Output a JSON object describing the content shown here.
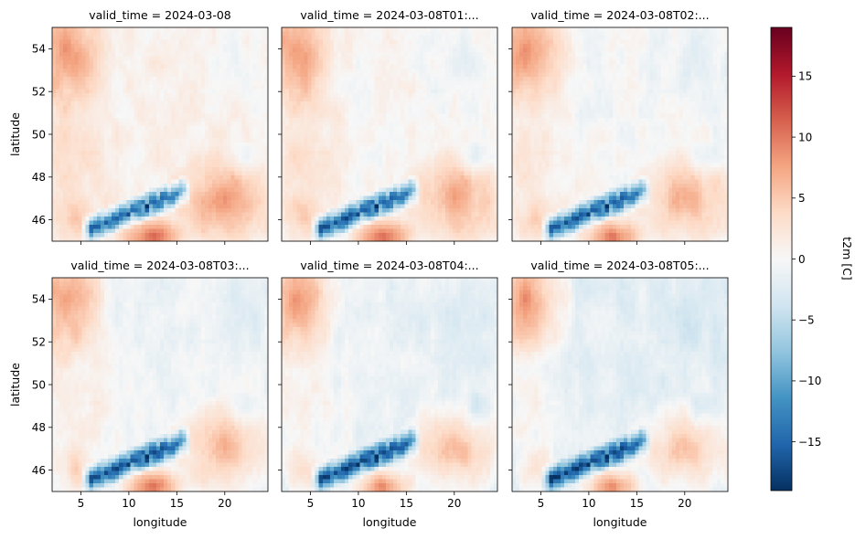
{
  "chart_data": {
    "type": "heatmap",
    "facet_titles": [
      "valid_time = 2024-03-08",
      "valid_time = 2024-03-08T01:...",
      "valid_time = 2024-03-08T02:...",
      "valid_time = 2024-03-08T03:...",
      "valid_time = 2024-03-08T04:...",
      "valid_time = 2024-03-08T05:..."
    ],
    "facet_hours": [
      0,
      1,
      2,
      3,
      4,
      5
    ],
    "xlabel": "longitude",
    "ylabel": "latitude",
    "xlim": [
      2,
      24.5
    ],
    "ylim": [
      45,
      55
    ],
    "xticks": [
      5,
      10,
      15,
      20
    ],
    "yticks": [
      46,
      48,
      50,
      52,
      54
    ],
    "colorbar": {
      "label": "t2m [C]",
      "range": [
        -19,
        19
      ],
      "ticks": [
        -15,
        -10,
        -5,
        0,
        5,
        10,
        15
      ],
      "colormap": "RdBu_r"
    },
    "grid": false
  },
  "colormap_stops": [
    "#053061",
    "#2166ac",
    "#4393c3",
    "#92c5de",
    "#d1e5f0",
    "#f7f7f7",
    "#fddbc7",
    "#f4a582",
    "#d6604d",
    "#b2182b",
    "#67001f"
  ]
}
